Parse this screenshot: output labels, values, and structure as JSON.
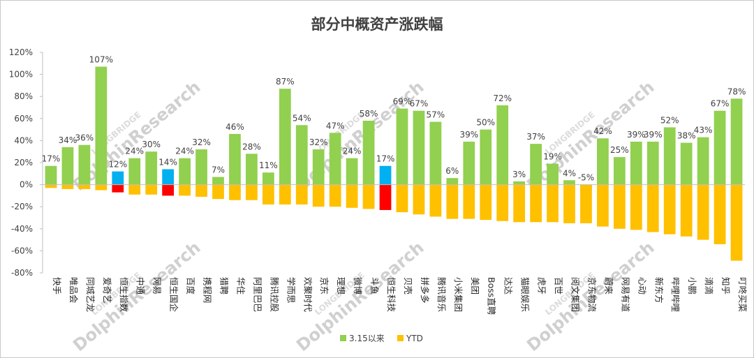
{
  "chart_data": {
    "type": "bar",
    "title": "部分中概资产涨跌幅",
    "ylim": [
      -80,
      120
    ],
    "y_ticks": [
      "120%",
      "100%",
      "80%",
      "60%",
      "40%",
      "20%",
      "0%",
      "-20%",
      "-40%",
      "-60%",
      "-80%"
    ],
    "grid": false,
    "legend_position": "bottom-center",
    "categories": [
      "快手",
      "唯品会",
      "同城艺龙",
      "爱奇艺",
      "恒生指数",
      "中通",
      "网易",
      "恒生国企",
      "百度",
      "携程网",
      "猎聘",
      "华住",
      "阿里巴巴",
      "腾讯控股",
      "学而思",
      "欢聚时代",
      "京东",
      "理想",
      "微博",
      "斗鱼",
      "恒生科技",
      "贝壳",
      "拼多多",
      "腾讯音乐",
      "小米集团",
      "美团",
      "Boss直聘",
      "达达",
      "猫眼娱乐",
      "虎牙",
      "百世",
      "阅文集团",
      "京东物流",
      "蔚来",
      "网易有道",
      "心动",
      "新东方",
      "哔哩哔哩",
      "小鹏",
      "滴滴",
      "知乎",
      "叮咚买菜"
    ],
    "highlight": {
      "恒生指数": {
        "series1": "#00b0f0",
        "series2": "#ff0000"
      },
      "恒生国企": {
        "series1": "#00b0f0",
        "series2": "#ff0000"
      },
      "恒生科技": {
        "series1": "#00b0f0",
        "series2": "#ff0000"
      }
    },
    "series": [
      {
        "name": "3.15以来",
        "color": "#92d050",
        "values": [
          17,
          34,
          36,
          107,
          12,
          24,
          30,
          14,
          24,
          32,
          7,
          46,
          28,
          11,
          87,
          54,
          32,
          47,
          24,
          58,
          17,
          69,
          67,
          57,
          6,
          39,
          50,
          72,
          3,
          37,
          19,
          4,
          -5,
          42,
          25,
          39,
          39,
          52,
          38,
          43,
          67,
          78
        ],
        "labels": [
          "17%",
          "34%",
          "36%",
          "107%",
          "12%",
          "24%",
          "30%",
          "14%",
          "24%",
          "32%",
          "7%",
          "46%",
          "28%",
          "11%",
          "87%",
          "54%",
          "32%",
          "47%",
          "24%",
          "58%",
          "17%",
          "69%",
          "67%",
          "57%",
          "6%",
          "39%",
          "50%",
          "72%",
          "3%",
          "37%",
          "19%",
          "4%",
          "-5%",
          "42%",
          "25%",
          "39%",
          "39%",
          "52%",
          "38%",
          "43%",
          "67%",
          "78%"
        ]
      },
      {
        "name": "YTD",
        "color": "#ffc000",
        "values": [
          -3,
          -4,
          -4,
          -5,
          -7,
          -9,
          -9,
          -10,
          -10,
          -11,
          -13,
          -14,
          -14,
          -18,
          -18,
          -18,
          -20,
          -20,
          -21,
          -22,
          -23,
          -25,
          -27,
          -29,
          -31,
          -31,
          -32,
          -33,
          -34,
          -34,
          -34,
          -35,
          -35,
          -38,
          -40,
          -41,
          -43,
          -45,
          -47,
          -50,
          -54,
          -69
        ]
      }
    ]
  },
  "watermark": {
    "brand": "DolphinResearch",
    "sub": "LONGBRIDGE"
  }
}
